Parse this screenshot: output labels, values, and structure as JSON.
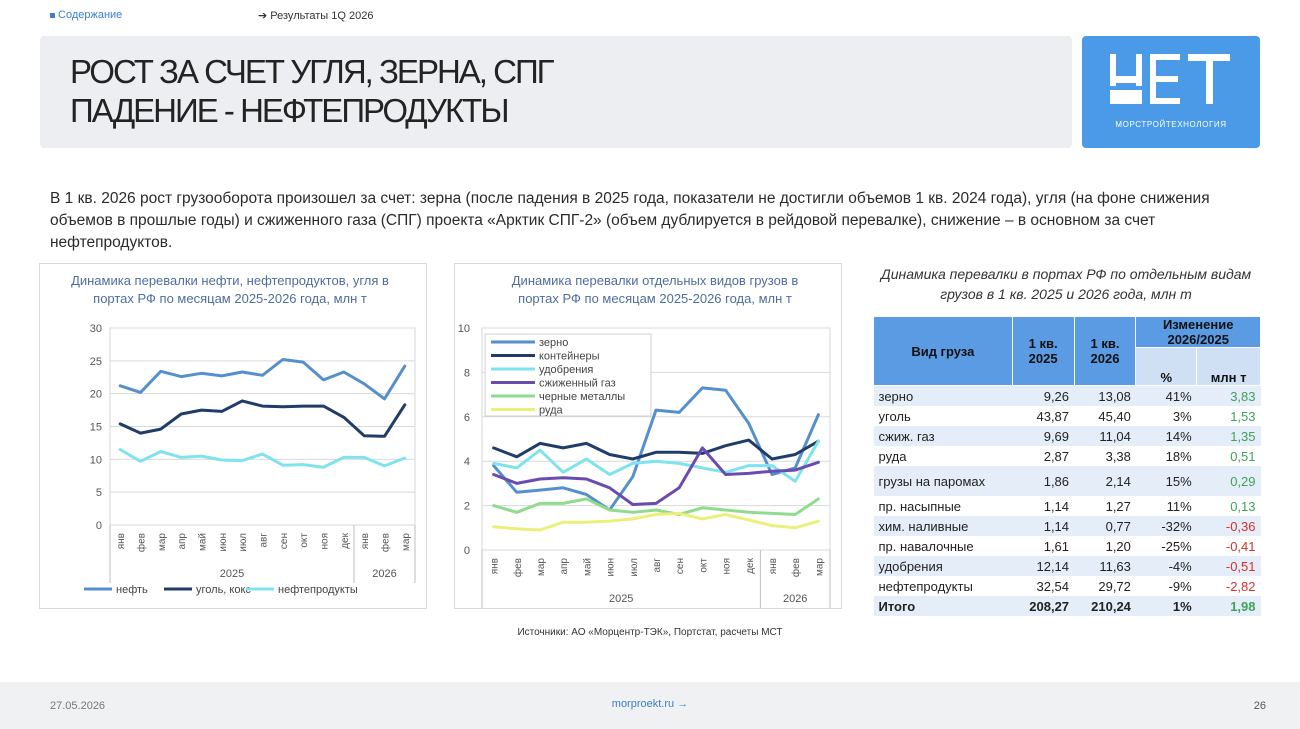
{
  "nav": {
    "toc": "Содержание",
    "results": "Результаты 1Q 2026"
  },
  "title": {
    "line1": "РОСТ ЗА СЧЕТ УГЛЯ, ЗЕРНА, СПГ",
    "line2": "ПАДЕНИЕ - НЕФТЕПРОДУКТЫ"
  },
  "logo": {
    "caption": "МОРСТРОЙТЕХНОЛОГИЯ"
  },
  "intro": "В 1 кв. 2026 рост грузооборота произошел за счет: зерна (после падения в 2025 года, показатели не достигли объемов 1 кв. 2024 года),  угля (на фоне снижения объемов в прошлые годы) и сжиженного газа (СПГ) проекта «Арктик СПГ-2» (объем дублируется в рейдовой перевалке), снижение – в основном за счет нефтепродуктов.",
  "colors": {
    "accent": "#4a9ae8",
    "header": "#5b9be3",
    "positive": "#3da35a",
    "negative": "#d6312b"
  },
  "chart_data": [
    {
      "type": "line",
      "title": "Динамика перевалки нефти, нефтепродуктов, угля в портах РФ по месяцам 2025-2026 года, млн т",
      "categories": [
        "янв",
        "фев",
        "мар",
        "апр",
        "май",
        "июн",
        "июл",
        "авг",
        "сен",
        "окт",
        "ноя",
        "дек",
        "янв",
        "фев",
        "мар"
      ],
      "years": [
        "2025",
        "2026"
      ],
      "ylim": [
        0,
        30
      ],
      "yticks": [
        "0",
        "5",
        "10",
        "15",
        "20",
        "25",
        "30"
      ],
      "grid": true,
      "legend": "bottom",
      "series": [
        {
          "name": "нефть",
          "color": "#5590cc",
          "values": [
            21.2,
            20.2,
            23.4,
            22.6,
            23.1,
            22.7,
            23.3,
            22.8,
            25.2,
            24.8,
            22.1,
            23.3,
            21.5,
            19.2,
            24.2
          ]
        },
        {
          "name": "уголь, кокс",
          "color": "#1f3d68",
          "values": [
            15.4,
            14.0,
            14.6,
            16.9,
            17.5,
            17.3,
            18.9,
            18.1,
            18.0,
            18.1,
            18.1,
            16.4,
            13.6,
            13.5,
            18.3
          ]
        },
        {
          "name": "нефтепродукты",
          "color": "#7fe3ee",
          "values": [
            11.5,
            9.7,
            11.2,
            10.3,
            10.5,
            9.9,
            9.8,
            10.8,
            9.1,
            9.2,
            8.8,
            10.3,
            10.3,
            9.0,
            10.2
          ]
        }
      ]
    },
    {
      "type": "line",
      "title": "Динамика перевалки отдельных видов грузов в портах РФ по месяцам 2025-2026 года, млн т",
      "categories": [
        "янв",
        "фев",
        "мар",
        "апр",
        "май",
        "июн",
        "июл",
        "авг",
        "сен",
        "окт",
        "ноя",
        "дек",
        "янв",
        "фев",
        "мар"
      ],
      "years": [
        "2025",
        "2026"
      ],
      "ylim": [
        0,
        10
      ],
      "yticks": [
        "0",
        "2",
        "4",
        "6",
        "8",
        "10"
      ],
      "grid": true,
      "legend": "top-left",
      "series": [
        {
          "name": "зерно",
          "color": "#5590cc",
          "values": [
            3.8,
            2.6,
            2.7,
            2.8,
            2.5,
            1.8,
            3.3,
            6.3,
            6.2,
            7.3,
            7.2,
            5.7,
            3.4,
            3.7,
            6.1
          ]
        },
        {
          "name": "контейнеры",
          "color": "#1f3d68",
          "values": [
            4.6,
            4.2,
            4.8,
            4.6,
            4.8,
            4.3,
            4.1,
            4.4,
            4.4,
            4.35,
            4.7,
            4.95,
            4.1,
            4.3,
            4.9
          ]
        },
        {
          "name": "удобрения",
          "color": "#7fe3ee",
          "values": [
            3.9,
            3.7,
            4.5,
            3.5,
            4.1,
            3.4,
            3.9,
            4.0,
            3.9,
            3.7,
            3.5,
            3.8,
            3.8,
            3.1,
            4.9
          ]
        },
        {
          "name": "сжиженный газ",
          "color": "#6a4bb0",
          "values": [
            3.4,
            3.0,
            3.2,
            3.25,
            3.2,
            2.8,
            2.05,
            2.1,
            2.8,
            4.6,
            3.4,
            3.45,
            3.55,
            3.6,
            3.95
          ]
        },
        {
          "name": "черные металлы",
          "color": "#8fdc8f",
          "values": [
            2.0,
            1.7,
            2.1,
            2.1,
            2.3,
            1.8,
            1.7,
            1.8,
            1.6,
            1.9,
            1.8,
            1.7,
            1.65,
            1.6,
            2.3
          ]
        },
        {
          "name": "руда",
          "color": "#eaf07a",
          "values": [
            1.05,
            0.95,
            0.9,
            1.25,
            1.25,
            1.3,
            1.4,
            1.6,
            1.65,
            1.4,
            1.6,
            1.35,
            1.1,
            1.0,
            1.3
          ]
        }
      ]
    }
  ],
  "table": {
    "title": "Динамика перевалки в портах РФ по отдельным видам грузов в 1 кв. 2025 и 2026 года, млн т",
    "headers": {
      "cargo": "Вид груза",
      "q2025": "1 кв. 2025",
      "q2026": "1 кв. 2026",
      "change": "Изменение 2026/2025",
      "pct": "%",
      "mt": "млн т"
    },
    "rows": [
      {
        "name": "зерно",
        "q2025": "9,26",
        "q2026": "13,08",
        "pct": "41%",
        "mt": "3,83",
        "sign": "pos"
      },
      {
        "name": "уголь",
        "q2025": "43,87",
        "q2026": "45,40",
        "pct": "3%",
        "mt": "1,53",
        "sign": "pos"
      },
      {
        "name": "сжиж. газ",
        "q2025": "9,69",
        "q2026": "11,04",
        "pct": "14%",
        "mt": "1,35",
        "sign": "pos"
      },
      {
        "name": "руда",
        "q2025": "2,87",
        "q2026": "3,38",
        "pct": "18%",
        "mt": "0,51",
        "sign": "pos"
      },
      {
        "name": "грузы на паромах",
        "q2025": "1,86",
        "q2026": "2,14",
        "pct": "15%",
        "mt": "0,29",
        "sign": "pos"
      },
      {
        "name": "пр. насыпные",
        "q2025": "1,14",
        "q2026": "1,27",
        "pct": "11%",
        "mt": "0,13",
        "sign": "pos"
      },
      {
        "name": "хим. наливные",
        "q2025": "1,14",
        "q2026": "0,77",
        "pct": "-32%",
        "mt": "-0,36",
        "sign": "neg"
      },
      {
        "name": "пр. навалочные",
        "q2025": "1,61",
        "q2026": "1,20",
        "pct": "-25%",
        "mt": "-0,41",
        "sign": "neg"
      },
      {
        "name": "удобрения",
        "q2025": "12,14",
        "q2026": "11,63",
        "pct": "-4%",
        "mt": "-0,51",
        "sign": "neg"
      },
      {
        "name": "нефтепродукты",
        "q2025": "32,54",
        "q2026": "29,72",
        "pct": "-9%",
        "mt": "-2,82",
        "sign": "neg"
      },
      {
        "name": "Итого",
        "q2025": "208,27",
        "q2026": "210,24",
        "pct": "1%",
        "mt": "1,98",
        "sign": "pos"
      }
    ]
  },
  "sources": "Источники: АО «Морцентр-ТЭК», Портстат, расчеты МСТ",
  "footer": {
    "date": "27.05.2026",
    "link": "morproekt.ru →",
    "page": "26"
  }
}
